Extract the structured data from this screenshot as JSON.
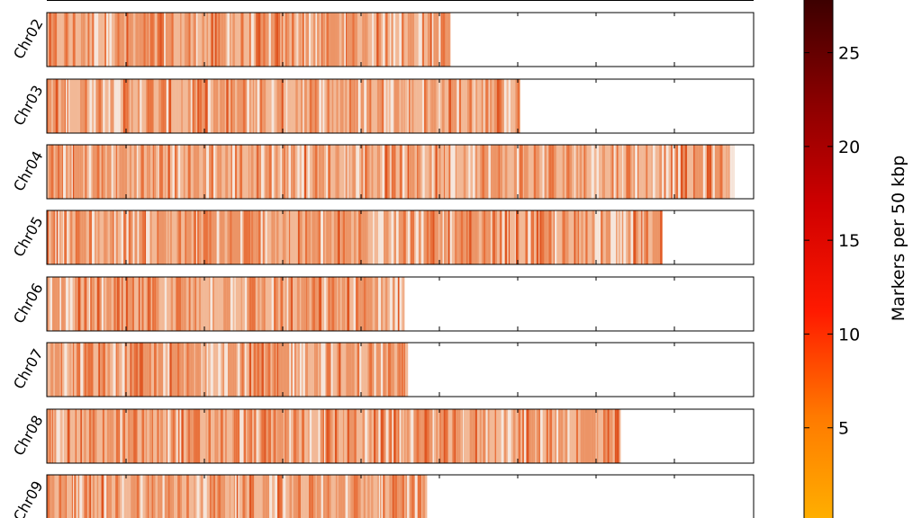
{
  "chart_data": {
    "type": "heatmap",
    "title": "",
    "xlabel": "",
    "ylabel": "",
    "colorbar": {
      "label": "Markers per 50 kbp",
      "ticks": [
        5,
        10,
        15,
        20,
        25
      ],
      "range": [
        0,
        28
      ],
      "colormap": [
        "#ffb000",
        "#ff7a00",
        "#ff1a00",
        "#d00000",
        "#8a0000",
        "#3a0000"
      ]
    },
    "x_ticks_count": 9,
    "chromosomes": [
      {
        "name": "Chr02",
        "length_fraction": 0.571,
        "mean_density": 3.2
      },
      {
        "name": "Chr03",
        "length_fraction": 0.67,
        "mean_density": 3.0
      },
      {
        "name": "Chr04",
        "length_fraction": 0.973,
        "mean_density": 3.1
      },
      {
        "name": "Chr05",
        "length_fraction": 0.871,
        "mean_density": 3.0
      },
      {
        "name": "Chr06",
        "length_fraction": 0.506,
        "mean_density": 3.0
      },
      {
        "name": "Chr07",
        "length_fraction": 0.511,
        "mean_density": 3.3
      },
      {
        "name": "Chr08",
        "length_fraction": 0.812,
        "mean_density": 3.1
      },
      {
        "name": "Chr09",
        "length_fraction": 0.538,
        "mean_density": 3.4
      }
    ]
  },
  "colors": {
    "frame": "#000000",
    "low_density": "#f4d7c4",
    "mid_density": "#ee9a6b",
    "high_density": "#e8602c"
  }
}
